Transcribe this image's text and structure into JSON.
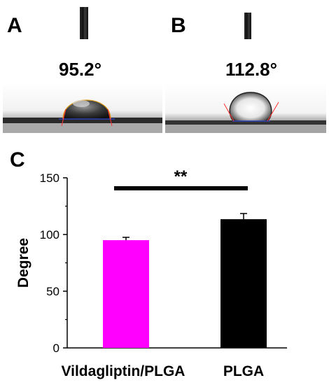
{
  "panels": {
    "a": {
      "letter": "A",
      "angle_label": "95.2°"
    },
    "b": {
      "letter": "B",
      "angle_label": "112.8°"
    },
    "c": {
      "letter": "C"
    }
  },
  "chart_data": {
    "type": "bar",
    "categories": [
      "Vildagliptin/PLGA",
      "PLGA"
    ],
    "values": [
      95,
      113.5
    ],
    "errors": [
      2.5,
      5
    ],
    "colors": [
      "#ff00ff",
      "#000000"
    ],
    "ylabel": "Degree",
    "xlabel": "",
    "ylim": [
      0,
      150
    ],
    "yticks": [
      0,
      50,
      100,
      150
    ],
    "significance": {
      "label": "**",
      "between": [
        0,
        1
      ]
    },
    "grid": false
  }
}
